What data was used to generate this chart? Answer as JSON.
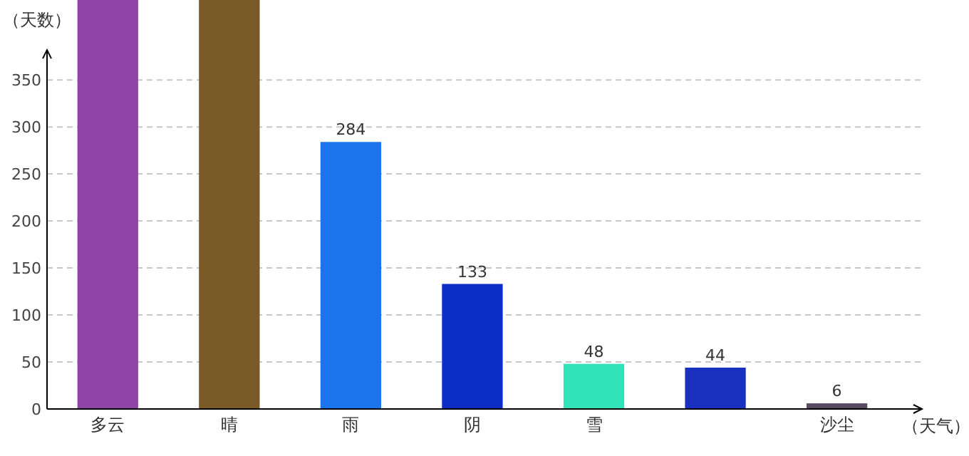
{
  "chart_data": {
    "type": "bar",
    "categories": [
      "多云",
      "晴",
      "雨",
      "阴",
      "雪",
      null,
      "沙尘"
    ],
    "values": [
      435,
      435,
      284,
      133,
      48,
      44,
      6
    ],
    "value_labels": [
      null,
      null,
      "284",
      "133",
      "48",
      "44",
      "6"
    ],
    "colors": [
      "#8e45a6",
      "#7a5a27",
      "#1a74eb",
      "#0c2dc6",
      "#32e3b9",
      "#1a31c0",
      "#5b4b62"
    ],
    "ylabel": "（天数）",
    "xlabel": "（天气）",
    "ylim": [
      0,
      435
    ],
    "yticks": [
      0,
      50,
      100,
      150,
      200,
      250,
      300,
      350
    ],
    "grid": "y"
  }
}
